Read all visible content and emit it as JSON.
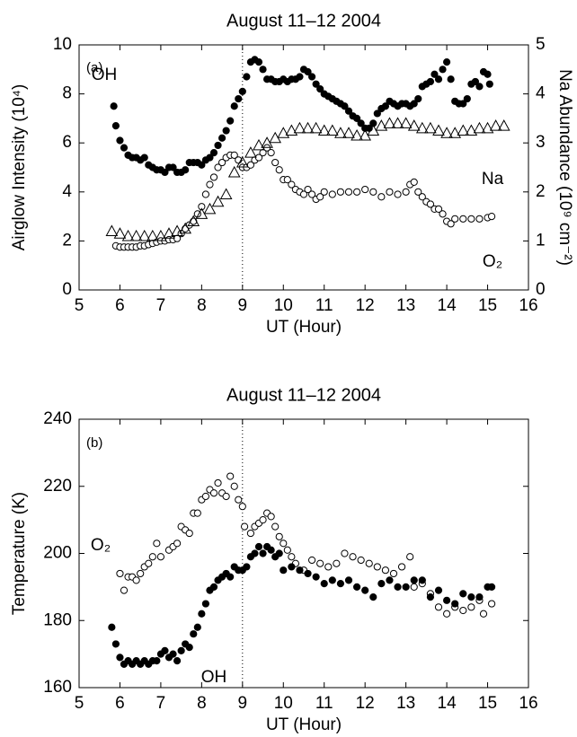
{
  "chart_data": [
    {
      "type": "scatter",
      "title": "August 11–12 2004",
      "panel_label": "(a)",
      "x_label": "UT (Hour)",
      "y_label": "Airglow Intensity (10⁴)",
      "y2_label": "Na Abundance (10⁹ cm⁻²)",
      "xlim": [
        5,
        16
      ],
      "xticks": [
        5,
        6,
        7,
        8,
        9,
        10,
        11,
        12,
        13,
        14,
        15,
        16
      ],
      "ylim": [
        0,
        10
      ],
      "yticks": [
        0,
        2,
        4,
        6,
        8,
        10
      ],
      "y2lim": [
        0,
        5
      ],
      "y2ticks": [
        0,
        1,
        2,
        3,
        4,
        5
      ],
      "vline": 9,
      "series": [
        {
          "name": "OH",
          "marker": "filled-circle",
          "color": "#000000",
          "x": [
            5.85,
            5.9,
            6.0,
            6.1,
            6.2,
            6.3,
            6.4,
            6.5,
            6.6,
            6.7,
            6.8,
            6.9,
            7.0,
            7.1,
            7.2,
            7.3,
            7.4,
            7.5,
            7.6,
            7.7,
            7.8,
            7.9,
            8.0,
            8.1,
            8.2,
            8.3,
            8.4,
            8.5,
            8.6,
            8.7,
            8.8,
            8.9,
            9.0,
            9.1,
            9.2,
            9.3,
            9.4,
            9.5,
            9.6,
            9.7,
            9.8,
            9.9,
            10.0,
            10.1,
            10.2,
            10.3,
            10.4,
            10.5,
            10.6,
            10.7,
            10.8,
            10.9,
            11.0,
            11.1,
            11.2,
            11.3,
            11.4,
            11.5,
            11.6,
            11.7,
            11.8,
            11.9,
            12.0,
            12.1,
            12.2,
            12.3,
            12.4,
            12.5,
            12.6,
            12.7,
            12.8,
            12.9,
            13.0,
            13.1,
            13.2,
            13.3,
            13.4,
            13.5,
            13.6,
            13.7,
            13.8,
            13.9,
            14.0,
            14.1,
            14.2,
            14.3,
            14.4,
            14.5,
            14.6,
            14.7,
            14.8,
            14.9,
            15.0,
            15.05
          ],
          "values": [
            7.5,
            6.7,
            6.1,
            5.8,
            5.5,
            5.4,
            5.4,
            5.3,
            5.4,
            5.1,
            5.0,
            4.9,
            4.9,
            4.8,
            5.0,
            5.0,
            4.8,
            4.8,
            4.9,
            5.2,
            5.2,
            5.2,
            5.1,
            5.3,
            5.4,
            5.6,
            5.9,
            6.2,
            6.5,
            6.9,
            7.5,
            7.8,
            8.1,
            8.7,
            9.3,
            9.4,
            9.3,
            9.0,
            8.6,
            8.6,
            8.5,
            8.5,
            8.6,
            8.5,
            8.6,
            8.6,
            8.7,
            9.0,
            8.9,
            8.7,
            8.4,
            8.2,
            8.0,
            7.9,
            7.8,
            7.7,
            7.6,
            7.5,
            7.3,
            7.1,
            7.0,
            6.8,
            6.6,
            6.6,
            6.8,
            7.2,
            7.4,
            7.5,
            7.7,
            7.6,
            7.5,
            7.6,
            7.6,
            7.5,
            7.6,
            7.8,
            8.3,
            8.4,
            8.5,
            8.8,
            8.6,
            9.0,
            9.3,
            8.6,
            7.7,
            7.6,
            7.6,
            7.8,
            8.4,
            8.5,
            8.3,
            8.9,
            8.8,
            8.4
          ]
        },
        {
          "name": "O₂",
          "marker": "open-circle",
          "color": "#000000",
          "x": [
            5.9,
            6.0,
            6.1,
            6.2,
            6.3,
            6.4,
            6.5,
            6.6,
            6.7,
            6.8,
            6.9,
            7.0,
            7.1,
            7.2,
            7.3,
            7.4,
            7.5,
            7.6,
            7.7,
            7.8,
            7.9,
            8.0,
            8.1,
            8.2,
            8.3,
            8.4,
            8.5,
            8.6,
            8.7,
            8.8,
            8.9,
            9.0,
            9.1,
            9.2,
            9.3,
            9.4,
            9.5,
            9.6,
            9.7,
            9.8,
            9.9,
            10.0,
            10.1,
            10.2,
            10.3,
            10.4,
            10.5,
            10.6,
            10.7,
            10.8,
            10.9,
            11.0,
            11.2,
            11.4,
            11.6,
            11.8,
            12.0,
            12.2,
            12.4,
            12.6,
            12.8,
            13.0,
            13.1,
            13.2,
            13.3,
            13.4,
            13.5,
            13.6,
            13.7,
            13.8,
            13.9,
            14.0,
            14.1,
            14.2,
            14.4,
            14.6,
            14.8,
            15.0,
            15.1
          ],
          "values": [
            1.8,
            1.75,
            1.75,
            1.75,
            1.75,
            1.75,
            1.8,
            1.8,
            1.85,
            1.9,
            1.95,
            2.0,
            2.0,
            2.05,
            2.05,
            2.1,
            2.3,
            2.5,
            2.65,
            2.8,
            3.1,
            3.4,
            3.9,
            4.3,
            4.6,
            5.0,
            5.2,
            5.4,
            5.5,
            5.5,
            5.3,
            5.0,
            5.0,
            5.1,
            5.3,
            5.4,
            5.6,
            5.8,
            5.6,
            5.2,
            4.9,
            4.5,
            4.5,
            4.3,
            4.1,
            4.0,
            3.9,
            4.1,
            3.9,
            3.7,
            3.8,
            4.0,
            3.9,
            4.0,
            4.0,
            4.0,
            4.1,
            4.0,
            3.8,
            4.0,
            3.9,
            4.0,
            4.3,
            4.4,
            4.0,
            3.8,
            3.6,
            3.5,
            3.3,
            3.3,
            3.1,
            2.8,
            2.7,
            2.9,
            2.9,
            2.9,
            2.9,
            2.95,
            3.0
          ]
        },
        {
          "name": "Na",
          "marker": "triangle",
          "color": "#000000",
          "axis": "y2",
          "x": [
            5.8,
            6.0,
            6.2,
            6.4,
            6.6,
            6.8,
            7.0,
            7.2,
            7.4,
            7.6,
            7.8,
            8.0,
            8.2,
            8.4,
            8.6,
            8.8,
            9.0,
            9.2,
            9.4,
            9.6,
            9.8,
            10.0,
            10.2,
            10.4,
            10.6,
            10.8,
            11.0,
            11.2,
            11.4,
            11.6,
            11.8,
            12.0,
            12.2,
            12.4,
            12.6,
            12.8,
            13.0,
            13.2,
            13.4,
            13.6,
            13.8,
            14.0,
            14.2,
            14.4,
            14.6,
            14.8,
            15.0,
            15.2,
            15.4
          ],
          "values": [
            1.2,
            1.15,
            1.1,
            1.1,
            1.1,
            1.1,
            1.1,
            1.15,
            1.2,
            1.25,
            1.4,
            1.55,
            1.65,
            1.8,
            1.95,
            2.4,
            2.6,
            2.8,
            2.95,
            3.0,
            3.1,
            3.2,
            3.25,
            3.3,
            3.3,
            3.3,
            3.25,
            3.25,
            3.2,
            3.2,
            3.15,
            3.15,
            3.25,
            3.35,
            3.4,
            3.4,
            3.4,
            3.35,
            3.3,
            3.3,
            3.25,
            3.2,
            3.2,
            3.25,
            3.25,
            3.3,
            3.3,
            3.35,
            3.35
          ]
        }
      ]
    },
    {
      "type": "scatter",
      "title": "August 11–12 2004",
      "panel_label": "(b)",
      "x_label": "UT (Hour)",
      "y_label": "Temperature (K)",
      "xlim": [
        5,
        16
      ],
      "xticks": [
        5,
        6,
        7,
        8,
        9,
        10,
        11,
        12,
        13,
        14,
        15,
        16
      ],
      "ylim": [
        160,
        240
      ],
      "yticks": [
        160,
        180,
        200,
        220,
        240
      ],
      "vline": 9,
      "series": [
        {
          "name": "O₂",
          "marker": "open-circle",
          "color": "#000000",
          "x": [
            6.0,
            6.1,
            6.2,
            6.3,
            6.4,
            6.5,
            6.6,
            6.7,
            6.8,
            6.9,
            7.0,
            7.2,
            7.3,
            7.4,
            7.5,
            7.6,
            7.7,
            7.8,
            7.9,
            8.0,
            8.1,
            8.2,
            8.3,
            8.4,
            8.5,
            8.6,
            8.7,
            8.8,
            8.9,
            9.0,
            9.05,
            9.2,
            9.3,
            9.4,
            9.5,
            9.6,
            9.7,
            9.8,
            9.9,
            10.0,
            10.1,
            10.2,
            10.3,
            10.5,
            10.7,
            10.9,
            11.1,
            11.3,
            11.5,
            11.7,
            11.9,
            12.1,
            12.3,
            12.5,
            12.7,
            12.9,
            13.1,
            13.2,
            13.4,
            13.6,
            13.8,
            14.0,
            14.2,
            14.4,
            14.6,
            14.8,
            14.9,
            15.1
          ],
          "values": [
            194,
            189,
            193,
            193,
            192,
            194,
            196,
            197,
            199,
            203,
            199,
            201,
            202,
            203,
            208,
            207,
            206,
            212,
            212,
            216,
            217,
            219,
            218,
            221,
            218,
            217,
            223,
            220,
            216,
            214,
            208,
            206,
            208,
            209,
            210,
            212,
            211,
            208,
            205,
            203,
            201,
            199,
            197,
            195,
            198,
            197,
            196,
            197,
            200,
            199,
            198,
            197,
            196,
            195,
            194,
            196,
            199,
            190,
            191,
            188,
            184,
            182,
            184,
            183,
            184,
            186,
            182,
            185
          ]
        },
        {
          "name": "OH",
          "marker": "filled-circle",
          "color": "#000000",
          "x": [
            5.8,
            5.9,
            6.0,
            6.1,
            6.2,
            6.3,
            6.4,
            6.5,
            6.6,
            6.7,
            6.8,
            6.9,
            7.0,
            7.1,
            7.2,
            7.3,
            7.4,
            7.5,
            7.6,
            7.7,
            7.8,
            7.9,
            8.0,
            8.1,
            8.2,
            8.3,
            8.4,
            8.5,
            8.6,
            8.7,
            8.8,
            8.9,
            9.0,
            9.1,
            9.2,
            9.3,
            9.4,
            9.5,
            9.6,
            9.7,
            9.8,
            9.9,
            10.0,
            10.2,
            10.4,
            10.6,
            10.8,
            11.0,
            11.2,
            11.4,
            11.6,
            11.8,
            12.0,
            12.2,
            12.4,
            12.6,
            12.8,
            13.0,
            13.2,
            13.4,
            13.6,
            13.8,
            14.0,
            14.2,
            14.4,
            14.6,
            14.8,
            15.0,
            15.1
          ],
          "values": [
            178,
            173,
            169,
            167,
            168,
            167,
            168,
            167,
            168,
            167,
            168,
            168,
            170,
            171,
            169,
            170,
            168,
            171,
            173,
            172,
            176,
            178,
            182,
            185,
            189,
            190,
            192,
            193,
            194,
            193,
            196,
            195,
            195,
            196,
            199,
            200,
            202,
            200,
            202,
            201,
            199,
            200,
            195,
            196,
            195,
            194,
            193,
            191,
            192,
            191,
            192,
            190,
            189,
            187,
            191,
            192,
            190,
            190,
            192,
            192,
            187,
            189,
            186,
            185,
            188,
            187,
            187,
            190,
            190
          ]
        }
      ]
    }
  ]
}
